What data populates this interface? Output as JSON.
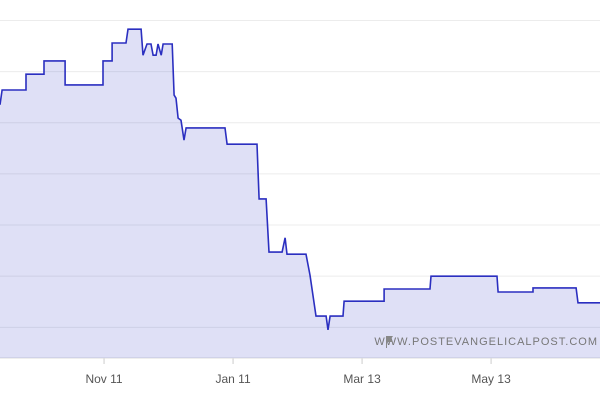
{
  "chart_data": {
    "type": "area",
    "x": [
      -49.2,
      -48.2,
      -36.9,
      -36.9,
      -28.4,
      -28.4,
      -18.4,
      -18.4,
      -0.5,
      -0.5,
      3.8,
      3.8,
      10.4,
      11.3,
      17.5,
      18.4,
      20.3,
      22.2,
      23.2,
      24.6,
      25.5,
      27.0,
      27.9,
      32.2,
      33.1,
      34.0,
      35.0,
      36.4,
      37.8,
      38.8,
      57.2,
      58.2,
      72.3,
      73.3,
      76.6,
      78.0,
      84.2,
      85.6,
      86.5,
      95.5,
      97.4,
      100.2,
      105.0,
      105.9,
      106.9,
      113.0,
      113.5,
      132.4,
      132.4,
      154.1,
      154.6,
      185.8,
      186.3,
      202.8,
      202.8,
      223.2,
      224.1,
      234.5
    ],
    "values": [
      5.35,
      5.64,
      5.64,
      5.95,
      5.95,
      6.21,
      6.21,
      5.74,
      5.74,
      6.21,
      6.21,
      6.56,
      6.56,
      6.83,
      6.83,
      6.32,
      6.54,
      6.54,
      6.32,
      6.32,
      6.54,
      6.32,
      6.54,
      6.54,
      5.54,
      5.48,
      5.09,
      5.05,
      4.66,
      4.9,
      4.9,
      4.58,
      4.58,
      3.51,
      3.51,
      2.47,
      2.47,
      2.75,
      2.43,
      2.43,
      2.02,
      1.22,
      1.22,
      0.95,
      1.22,
      1.22,
      1.51,
      1.51,
      1.75,
      1.75,
      2.0,
      2.0,
      1.69,
      1.69,
      1.77,
      1.77,
      1.48,
      1.48
    ],
    "color": "#2b2fc0",
    "xlim": [
      -49.2,
      234.5
    ],
    "xticks": [
      {
        "value": 0,
        "label": "Nov 11"
      },
      {
        "value": 61,
        "label": "Jan 11"
      },
      {
        "value": 122,
        "label": "Mar 13"
      },
      {
        "value": 183,
        "label": "May 13"
      }
    ],
    "ylim": [
      0.4,
      7.4
    ],
    "yticks": [
      1,
      2,
      3,
      4,
      5,
      6,
      7
    ],
    "grid": true,
    "watermark": "WWW.POSTEVANGELICALPOST.COM"
  }
}
